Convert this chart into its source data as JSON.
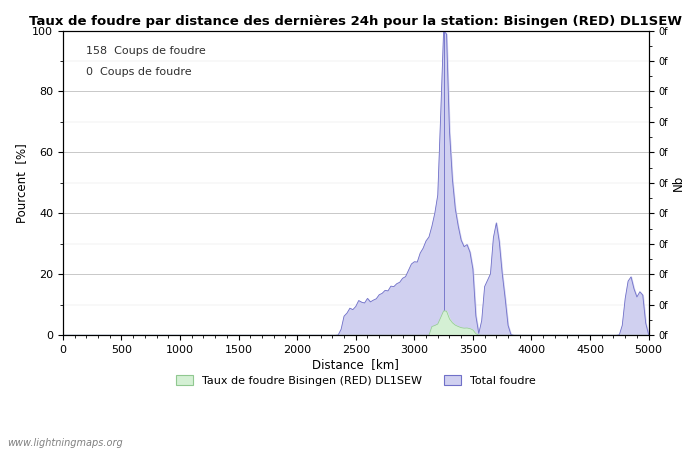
{
  "title": "Taux de foudre par distance des dernières 24h pour la station: Bisingen (RED) DL1SEW",
  "xlabel": "Distance  [km]",
  "ylabel_left": "Pourcent  [%]",
  "ylabel_right": "Nb",
  "annotation1": "158  Coups de foudre",
  "annotation2": "0  Coups de foudre",
  "xlim": [
    0,
    5000
  ],
  "ylim": [
    0,
    100
  ],
  "legend_label1": "Taux de foudre Bisingen (RED) DL1SEW",
  "legend_label2": "Total foudre",
  "color_green": "#d4f0d4",
  "color_blue": "#d0d0f0",
  "color_blue_line": "#7070c8",
  "color_green_line": "#90c890",
  "watermark": "www.lightningmaps.org",
  "vline_x": 3250
}
